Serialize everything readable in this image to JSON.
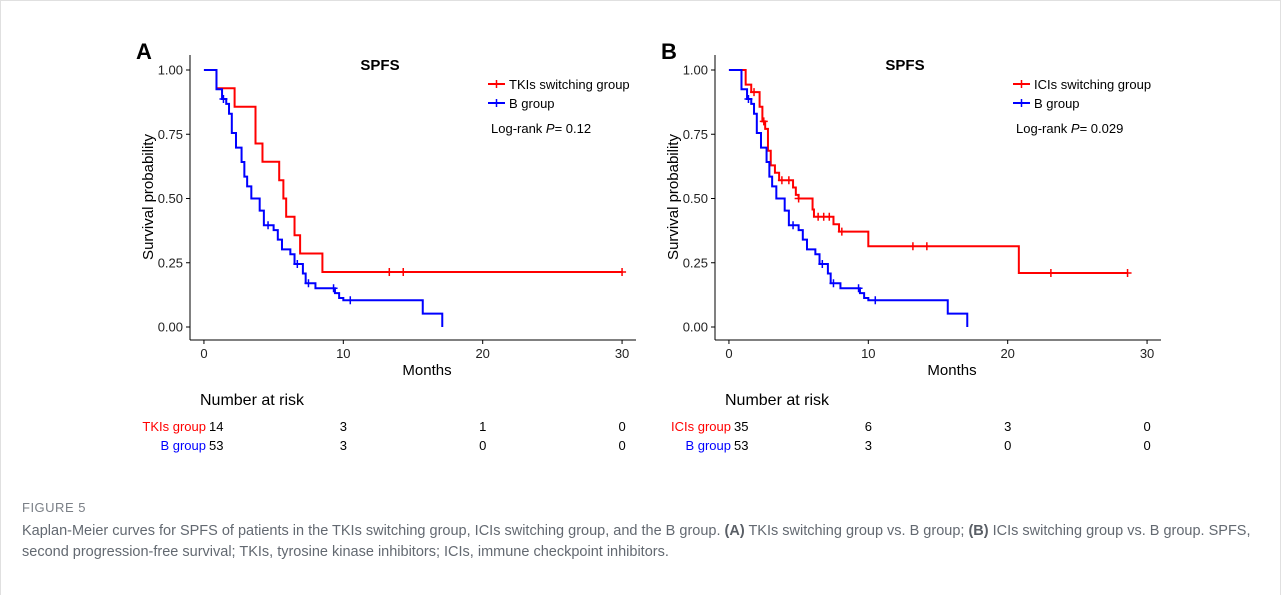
{
  "chart_data": [
    {
      "type": "line",
      "panel_letter": "A",
      "title": "SPFS",
      "xlabel": "Months",
      "ylabel": "Survival probability",
      "xlim": [
        -1,
        31
      ],
      "ylim": [
        0,
        1
      ],
      "xticks": [
        0,
        10,
        20,
        30
      ],
      "yticks": [
        0.0,
        0.25,
        0.5,
        0.75,
        1.0
      ],
      "ytick_labels": [
        "0.00",
        "0.25",
        "0.50",
        "0.75",
        "1.00"
      ],
      "grid": false,
      "legend_position": "top-right",
      "annotation_prefix": "Log-rank ",
      "annotation_p": "P",
      "annotation_value": "= 0.12",
      "series": [
        {
          "name": "TKIs switching group",
          "color": "#ff0000",
          "steps": [
            [
              0,
              1.0
            ],
            [
              0.9,
              0.929
            ],
            [
              2.2,
              0.857
            ],
            [
              3.7,
              0.714
            ],
            [
              4.2,
              0.643
            ],
            [
              5.4,
              0.571
            ],
            [
              5.7,
              0.5
            ],
            [
              5.9,
              0.429
            ],
            [
              6.5,
              0.357
            ],
            [
              6.9,
              0.286
            ],
            [
              8.5,
              0.214
            ],
            [
              30.0,
              0.214
            ]
          ],
          "censor": [
            [
              13.3,
              0.214
            ],
            [
              14.3,
              0.214
            ],
            [
              30.0,
              0.214
            ]
          ]
        },
        {
          "name": "B group",
          "color": "#0000ff",
          "steps": [
            [
              0,
              1.0
            ],
            [
              0.9,
              0.925
            ],
            [
              1.3,
              0.887
            ],
            [
              1.6,
              0.868
            ],
            [
              1.8,
              0.83
            ],
            [
              2.0,
              0.755
            ],
            [
              2.3,
              0.698
            ],
            [
              2.7,
              0.642
            ],
            [
              2.9,
              0.585
            ],
            [
              3.1,
              0.547
            ],
            [
              3.4,
              0.5
            ],
            [
              4.0,
              0.453
            ],
            [
              4.3,
              0.396
            ],
            [
              5.0,
              0.377
            ],
            [
              5.3,
              0.34
            ],
            [
              5.6,
              0.302
            ],
            [
              6.2,
              0.283
            ],
            [
              6.5,
              0.245
            ],
            [
              7.1,
              0.208
            ],
            [
              7.3,
              0.17
            ],
            [
              8.0,
              0.151
            ],
            [
              9.4,
              0.132
            ],
            [
              9.7,
              0.113
            ],
            [
              10.0,
              0.104
            ],
            [
              15.7,
              0.052
            ],
            [
              17.1,
              0.0
            ]
          ],
          "censor": [
            [
              1.4,
              0.887
            ],
            [
              4.6,
              0.396
            ],
            [
              6.7,
              0.245
            ],
            [
              7.5,
              0.17
            ],
            [
              9.3,
              0.151
            ],
            [
              10.5,
              0.104
            ]
          ]
        }
      ],
      "risk_table": {
        "title": "Number at risk",
        "times": [
          0,
          10,
          20,
          30
        ],
        "rows": [
          {
            "label": "TKIs group",
            "color": "#ff0000",
            "values": [
              "14",
              "3",
              "1",
              "0"
            ]
          },
          {
            "label": "B group",
            "color": "#0000ff",
            "values": [
              "53",
              "3",
              "0",
              "0"
            ]
          }
        ]
      }
    },
    {
      "type": "line",
      "panel_letter": "B",
      "title": "SPFS",
      "xlabel": "Months",
      "ylabel": "Survival probability",
      "xlim": [
        -1,
        31
      ],
      "ylim": [
        0,
        1
      ],
      "xticks": [
        0,
        10,
        20,
        30
      ],
      "yticks": [
        0.0,
        0.25,
        0.5,
        0.75,
        1.0
      ],
      "ytick_labels": [
        "0.00",
        "0.25",
        "0.50",
        "0.75",
        "1.00"
      ],
      "grid": false,
      "legend_position": "top-right",
      "annotation_prefix": "Log-rank ",
      "annotation_p": "P",
      "annotation_value": "= 0.029",
      "series": [
        {
          "name": "ICIs switching group",
          "color": "#ff0000",
          "steps": [
            [
              0,
              1.0
            ],
            [
              1.2,
              0.943
            ],
            [
              1.6,
              0.914
            ],
            [
              2.2,
              0.857
            ],
            [
              2.4,
              0.8
            ],
            [
              2.6,
              0.771
            ],
            [
              2.8,
              0.686
            ],
            [
              3.0,
              0.629
            ],
            [
              3.3,
              0.6
            ],
            [
              3.6,
              0.571
            ],
            [
              4.6,
              0.543
            ],
            [
              4.8,
              0.514
            ],
            [
              5.0,
              0.5
            ],
            [
              6.0,
              0.457
            ],
            [
              6.1,
              0.429
            ],
            [
              7.5,
              0.4
            ],
            [
              7.9,
              0.371
            ],
            [
              10.0,
              0.314
            ],
            [
              20.8,
              0.21
            ],
            [
              28.6,
              0.21
            ]
          ],
          "censor": [
            [
              1.8,
              0.914
            ],
            [
              2.5,
              0.8
            ],
            [
              3.8,
              0.571
            ],
            [
              4.3,
              0.571
            ],
            [
              5.0,
              0.5
            ],
            [
              6.4,
              0.429
            ],
            [
              6.8,
              0.429
            ],
            [
              7.2,
              0.429
            ],
            [
              8.1,
              0.371
            ],
            [
              13.2,
              0.314
            ],
            [
              14.2,
              0.314
            ],
            [
              23.1,
              0.21
            ],
            [
              28.6,
              0.21
            ]
          ]
        },
        {
          "name": "B group",
          "color": "#0000ff",
          "steps": [
            [
              0,
              1.0
            ],
            [
              0.9,
              0.925
            ],
            [
              1.3,
              0.887
            ],
            [
              1.6,
              0.868
            ],
            [
              1.8,
              0.83
            ],
            [
              2.0,
              0.755
            ],
            [
              2.3,
              0.698
            ],
            [
              2.7,
              0.642
            ],
            [
              2.9,
              0.585
            ],
            [
              3.1,
              0.547
            ],
            [
              3.4,
              0.5
            ],
            [
              4.0,
              0.453
            ],
            [
              4.3,
              0.396
            ],
            [
              5.0,
              0.377
            ],
            [
              5.3,
              0.34
            ],
            [
              5.6,
              0.302
            ],
            [
              6.2,
              0.283
            ],
            [
              6.5,
              0.245
            ],
            [
              7.1,
              0.208
            ],
            [
              7.3,
              0.17
            ],
            [
              8.0,
              0.151
            ],
            [
              9.4,
              0.132
            ],
            [
              9.7,
              0.113
            ],
            [
              10.0,
              0.104
            ],
            [
              15.7,
              0.052
            ],
            [
              17.1,
              0.0
            ]
          ],
          "censor": [
            [
              1.4,
              0.887
            ],
            [
              4.6,
              0.396
            ],
            [
              6.7,
              0.245
            ],
            [
              7.5,
              0.17
            ],
            [
              9.3,
              0.151
            ],
            [
              10.5,
              0.104
            ]
          ]
        }
      ],
      "risk_table": {
        "title": "Number at risk",
        "times": [
          0,
          10,
          20,
          30
        ],
        "rows": [
          {
            "label": "ICIs group",
            "color": "#ff0000",
            "values": [
              "35",
              "6",
              "3",
              "0"
            ]
          },
          {
            "label": "B group",
            "color": "#0000ff",
            "values": [
              "53",
              "3",
              "0",
              "0"
            ]
          }
        ]
      }
    }
  ],
  "figure": {
    "label": "FIGURE 5",
    "caption_intro": "Kaplan-Meier curves for SPFS of patients in the TKIs switching group, ICIs switching group, and the B group. ",
    "caption_a_tag": "(A)",
    "caption_a_text": " TKIs switching group vs. B group; ",
    "caption_b_tag": "(B)",
    "caption_b_text": " ICIs switching group vs. B group. SPFS, second progression-free survival; TKIs, tyrosine kinase inhibitors; ICIs, immune checkpoint inhibitors."
  }
}
